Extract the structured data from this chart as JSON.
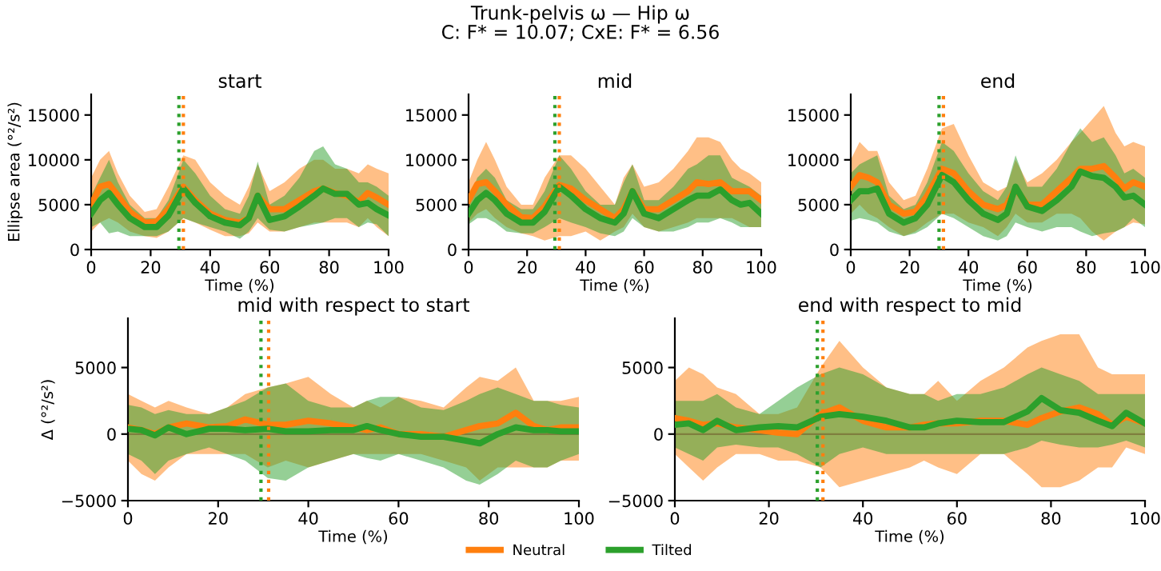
{
  "chart_data": [
    {
      "type": "line",
      "title": "start",
      "xlabel": "Time (%)",
      "ylabel": "Ellipse area (°²/s²)",
      "annotations": [
        "Trunk-pelvis ω — Hip ω",
        "C: F* = 10.07; CxE: F* = 6.56"
      ],
      "legend": "bottom",
      "x": [
        0,
        3,
        6,
        9,
        13,
        18,
        22,
        26,
        31,
        35,
        40,
        45,
        50,
        53,
        56,
        60,
        65,
        70,
        75,
        78,
        82,
        86,
        90,
        93,
        96,
        100
      ],
      "xlim": [
        0,
        100
      ],
      "xticks": [
        0,
        20,
        40,
        60,
        80,
        100
      ],
      "ylim": [
        0,
        17300
      ],
      "yticks": [
        0,
        5000,
        10000,
        15000
      ],
      "ref_lines": [
        {
          "axis": "x",
          "value": 29.5,
          "color": "#2ca02c",
          "line_style": "dotted"
        },
        {
          "axis": "x",
          "value": 31,
          "color": "#ff7f0e",
          "line_style": "dotted"
        }
      ],
      "series": [
        {
          "name": "Neutral",
          "color": "#ff7f0e",
          "values": [
            5000,
            7000,
            7300,
            6000,
            4200,
            3000,
            3100,
            4500,
            7000,
            5500,
            4000,
            3300,
            3000,
            3500,
            6000,
            4500,
            4500,
            5500,
            6500,
            6800,
            6300,
            6000,
            5300,
            6300,
            5800,
            5000
          ],
          "lower": [
            2000,
            3000,
            3500,
            3000,
            2000,
            1500,
            1300,
            2000,
            3500,
            3000,
            2200,
            1500,
            1500,
            1800,
            3000,
            2000,
            2000,
            2500,
            3000,
            3000,
            3000,
            3000,
            2500,
            3500,
            2500,
            1500
          ],
          "upper": [
            8000,
            10000,
            11000,
            8500,
            6000,
            4200,
            4500,
            7000,
            10500,
            10000,
            7500,
            6000,
            5000,
            7000,
            9500,
            6500,
            7500,
            9000,
            10000,
            10000,
            9000,
            9000,
            8500,
            9500,
            9000,
            8500
          ]
        },
        {
          "name": "Tilted",
          "color": "#2ca02c",
          "values": [
            4000,
            5500,
            6300,
            5000,
            3500,
            2500,
            2500,
            3800,
            6800,
            5200,
            3700,
            3000,
            2700,
            3500,
            6000,
            3300,
            3700,
            4800,
            6000,
            6800,
            6200,
            6200,
            5000,
            5200,
            4500,
            3800
          ],
          "lower": [
            2500,
            3000,
            1800,
            2000,
            1500,
            1500,
            1500,
            2000,
            3500,
            3000,
            2500,
            2000,
            1200,
            2000,
            3500,
            2200,
            2000,
            2500,
            2800,
            3000,
            3500,
            3500,
            2500,
            3000,
            2800,
            1500
          ],
          "upper": [
            6000,
            8000,
            10000,
            7500,
            5000,
            3500,
            3500,
            5500,
            10000,
            8500,
            6000,
            4500,
            4000,
            6000,
            9800,
            5000,
            6000,
            8000,
            11000,
            11500,
            9500,
            9000,
            7500,
            7500,
            7000,
            6000
          ]
        }
      ]
    },
    {
      "type": "line",
      "title": "mid",
      "xlabel": "Time (%)",
      "x": [
        0,
        3,
        6,
        9,
        13,
        18,
        22,
        26,
        31,
        35,
        40,
        45,
        50,
        53,
        56,
        60,
        65,
        70,
        75,
        78,
        82,
        86,
        90,
        93,
        96,
        100
      ],
      "xlim": [
        0,
        100
      ],
      "xticks": [
        0,
        20,
        40,
        60,
        80,
        100
      ],
      "ylim": [
        0,
        17300
      ],
      "yticks": [
        0,
        5000,
        10000,
        15000
      ],
      "ref_lines": [
        {
          "axis": "x",
          "value": 29.5,
          "color": "#2ca02c",
          "line_style": "dotted"
        },
        {
          "axis": "x",
          "value": 31,
          "color": "#ff7f0e",
          "line_style": "dotted"
        }
      ],
      "series": [
        {
          "color": "#ff7f0e",
          "values": [
            5500,
            7300,
            7500,
            6500,
            5000,
            3600,
            3500,
            4800,
            7200,
            6800,
            5500,
            4500,
            3500,
            4500,
            6500,
            4500,
            4500,
            5500,
            6500,
            7500,
            7300,
            7500,
            6500,
            6500,
            6500,
            5500
          ],
          "lower": [
            3000,
            4000,
            4500,
            3500,
            2500,
            1800,
            1500,
            1000,
            1500,
            1500,
            2000,
            1000,
            2000,
            2500,
            4000,
            2500,
            2000,
            2500,
            3000,
            3500,
            3500,
            3500,
            3500,
            3000,
            2500,
            2500
          ],
          "upper": [
            7500,
            10000,
            12000,
            10000,
            7000,
            5000,
            5000,
            8000,
            10500,
            10500,
            9000,
            7000,
            5000,
            8000,
            9500,
            7000,
            7500,
            9000,
            11000,
            12500,
            12500,
            12000,
            10000,
            9000,
            8500,
            7500
          ]
        },
        {
          "color": "#2ca02c",
          "values": [
            4000,
            5500,
            6300,
            5500,
            4000,
            3000,
            3000,
            4200,
            7000,
            6000,
            4500,
            3500,
            3000,
            4000,
            6500,
            4000,
            3500,
            4500,
            5500,
            6000,
            6000,
            6700,
            5500,
            5000,
            5200,
            4000
          ],
          "lower": [
            2800,
            3500,
            3500,
            3000,
            2000,
            1800,
            1800,
            2500,
            3500,
            3000,
            2500,
            1800,
            1500,
            2000,
            3500,
            2500,
            2000,
            2000,
            2500,
            3000,
            3000,
            3500,
            3000,
            2500,
            2500,
            2500
          ],
          "upper": [
            5500,
            8000,
            9000,
            8000,
            5500,
            4500,
            4500,
            6500,
            10500,
            9000,
            6500,
            5000,
            5000,
            7500,
            9500,
            5500,
            5500,
            7000,
            9000,
            9500,
            10500,
            10500,
            8000,
            7500,
            7000,
            6000
          ]
        }
      ]
    },
    {
      "type": "line",
      "title": "end",
      "xlabel": "Time (%)",
      "x": [
        0,
        3,
        6,
        9,
        13,
        18,
        22,
        26,
        31,
        35,
        40,
        45,
        50,
        53,
        56,
        60,
        65,
        70,
        75,
        78,
        82,
        86,
        90,
        93,
        96,
        100
      ],
      "xlim": [
        0,
        100
      ],
      "xticks": [
        0,
        20,
        40,
        60,
        80,
        100
      ],
      "ylim": [
        0,
        17300
      ],
      "yticks": [
        0,
        5000,
        10000,
        15000
      ],
      "ref_lines": [
        {
          "axis": "x",
          "value": 30,
          "color": "#2ca02c",
          "line_style": "dotted"
        },
        {
          "axis": "x",
          "value": 31.5,
          "color": "#ff7f0e",
          "line_style": "dotted"
        }
      ],
      "series": [
        {
          "color": "#ff7f0e",
          "values": [
            7000,
            8300,
            8000,
            7500,
            5000,
            4000,
            4200,
            6000,
            9000,
            8500,
            6500,
            5000,
            4500,
            5000,
            6800,
            5000,
            5000,
            6500,
            8000,
            9000,
            9000,
            9300,
            8000,
            6800,
            7500,
            7000
          ],
          "lower": [
            4000,
            5000,
            4000,
            3500,
            2500,
            1500,
            2000,
            3000,
            4000,
            4000,
            3000,
            2500,
            1500,
            2500,
            4000,
            3000,
            3000,
            4000,
            4000,
            3500,
            2000,
            1000,
            2000,
            2500,
            3000,
            2800
          ],
          "upper": [
            10000,
            12000,
            11000,
            11000,
            7500,
            5500,
            6000,
            9000,
            13500,
            14000,
            10500,
            7500,
            6500,
            7000,
            10000,
            7500,
            8500,
            10000,
            12000,
            13000,
            14500,
            16000,
            13000,
            11500,
            12000,
            11500
          ]
        },
        {
          "color": "#2ca02c",
          "values": [
            5500,
            6500,
            6500,
            6800,
            4000,
            3000,
            3500,
            5000,
            8300,
            7500,
            5500,
            4000,
            3300,
            4000,
            7000,
            4800,
            4300,
            5500,
            7000,
            8700,
            8200,
            8000,
            7000,
            5800,
            6000,
            5000
          ],
          "lower": [
            3200,
            3500,
            3300,
            3000,
            2000,
            1500,
            1800,
            2500,
            4000,
            3500,
            2500,
            1500,
            1000,
            1500,
            3000,
            2500,
            2000,
            2500,
            2500,
            2000,
            1500,
            1800,
            2000,
            2500,
            3500,
            2500
          ],
          "upper": [
            8500,
            9500,
            10000,
            10500,
            6000,
            4500,
            5000,
            7500,
            12000,
            11000,
            8500,
            6500,
            5500,
            7000,
            10500,
            7000,
            7000,
            9000,
            12000,
            13500,
            12000,
            12500,
            10500,
            8500,
            9000,
            8000
          ]
        }
      ]
    },
    {
      "type": "line",
      "title": "mid with respect to start",
      "xlabel": "Time (%)",
      "ylabel": "Δ (°²/s²)",
      "x": [
        0,
        3,
        6,
        9,
        13,
        18,
        22,
        26,
        31,
        35,
        40,
        45,
        50,
        53,
        56,
        60,
        65,
        70,
        75,
        78,
        82,
        86,
        90,
        93,
        96,
        100
      ],
      "xlim": [
        0,
        100
      ],
      "xticks": [
        0,
        20,
        40,
        60,
        80,
        100
      ],
      "ylim": [
        -5000,
        8700
      ],
      "yticks": [
        -5000,
        0,
        5000
      ],
      "ref_lines": [
        {
          "axis": "y",
          "value": 0,
          "color": "#7f7f3f",
          "line_style": "solid"
        },
        {
          "axis": "x",
          "value": 29.5,
          "color": "#2ca02c",
          "line_style": "dotted"
        },
        {
          "axis": "x",
          "value": 31.2,
          "color": "#ff7f0e",
          "line_style": "dotted"
        }
      ],
      "series": [
        {
          "color": "#ff7f0e",
          "values": [
            500,
            300,
            0,
            500,
            800,
            500,
            600,
            1100,
            700,
            700,
            1000,
            800,
            500,
            300,
            500,
            0,
            0,
            -200,
            300,
            600,
            800,
            1600,
            600,
            300,
            500,
            500
          ],
          "lower": [
            -2000,
            -3000,
            -3500,
            -2500,
            -1500,
            -1500,
            -1500,
            -1500,
            -2500,
            -2000,
            -2500,
            -2000,
            -1500,
            -1500,
            -1500,
            -1500,
            -1500,
            -2000,
            -2500,
            -3500,
            -2500,
            -2500,
            -2500,
            -2500,
            -2000,
            -2000
          ],
          "upper": [
            3000,
            2500,
            2000,
            2500,
            2000,
            1500,
            2000,
            3000,
            3500,
            3800,
            4300,
            3000,
            2000,
            2500,
            2000,
            2800,
            2500,
            2000,
            3500,
            4300,
            4000,
            5000,
            2500,
            2500,
            2500,
            2800
          ]
        },
        {
          "color": "#2ca02c",
          "values": [
            400,
            300,
            -100,
            500,
            0,
            400,
            400,
            300,
            400,
            200,
            200,
            300,
            300,
            600,
            300,
            0,
            -200,
            -200,
            -500,
            -700,
            0,
            500,
            300,
            300,
            200,
            200
          ],
          "lower": [
            -1500,
            -2000,
            -3000,
            -2000,
            -1500,
            -1000,
            -1500,
            -2000,
            -3300,
            -3500,
            -2500,
            -2000,
            -1500,
            -1800,
            -2000,
            -1500,
            -2000,
            -2500,
            -3500,
            -3800,
            -3000,
            -2000,
            -2500,
            -2500,
            -2000,
            -1500
          ],
          "upper": [
            2200,
            2000,
            1500,
            1800,
            1500,
            1500,
            2000,
            2500,
            3500,
            3800,
            2500,
            2000,
            2000,
            2500,
            2800,
            2800,
            2000,
            1800,
            2500,
            3000,
            3500,
            3000,
            2500,
            2500,
            2200,
            2000
          ]
        }
      ]
    },
    {
      "type": "line",
      "title": "end with respect to mid",
      "xlabel": "Time (%)",
      "x": [
        0,
        3,
        6,
        9,
        13,
        18,
        22,
        26,
        31,
        35,
        40,
        45,
        50,
        53,
        56,
        60,
        65,
        70,
        75,
        78,
        82,
        86,
        90,
        93,
        96,
        100
      ],
      "xlim": [
        0,
        100
      ],
      "xticks": [
        0,
        20,
        40,
        60,
        80,
        100
      ],
      "ylim": [
        -5000,
        8700
      ],
      "yticks": [
        -5000,
        0,
        5000
      ],
      "ref_lines": [
        {
          "axis": "y",
          "value": 0,
          "color": "#7f7f3f",
          "line_style": "solid"
        },
        {
          "axis": "x",
          "value": 30.3,
          "color": "#2ca02c",
          "line_style": "dotted"
        },
        {
          "axis": "x",
          "value": 31.5,
          "color": "#ff7f0e",
          "line_style": "dotted"
        }
      ],
      "series": [
        {
          "color": "#ff7f0e",
          "values": [
            1200,
            1000,
            700,
            800,
            500,
            300,
            100,
            0,
            1500,
            2000,
            1000,
            500,
            500,
            700,
            800,
            800,
            1000,
            1000,
            700,
            1200,
            1700,
            2000,
            1500,
            700,
            1300,
            800
          ],
          "lower": [
            -1500,
            -2500,
            -3500,
            -2500,
            -1500,
            -1500,
            -2000,
            -2000,
            -2500,
            -4000,
            -3500,
            -3000,
            -2500,
            -2000,
            -2500,
            -3000,
            -1500,
            -1500,
            -3000,
            -4000,
            -4000,
            -3500,
            -2500,
            -2500,
            -1000,
            -1500
          ],
          "upper": [
            4000,
            5000,
            4500,
            3500,
            3000,
            1500,
            1500,
            2000,
            5000,
            7000,
            5000,
            3500,
            3000,
            3000,
            4000,
            2500,
            4000,
            5000,
            6500,
            7000,
            7500,
            7500,
            5000,
            4500,
            4500,
            4500
          ]
        },
        {
          "color": "#2ca02c",
          "values": [
            700,
            800,
            300,
            1000,
            300,
            500,
            600,
            500,
            1300,
            1500,
            1300,
            1000,
            500,
            500,
            800,
            1000,
            900,
            900,
            1700,
            2700,
            1800,
            1600,
            1000,
            600,
            1600,
            800
          ],
          "lower": [
            -1000,
            -1500,
            -2000,
            -1000,
            -800,
            -1000,
            -1000,
            -1500,
            -2500,
            -1500,
            -1000,
            -1500,
            -1500,
            -1500,
            -1500,
            -1500,
            -1500,
            -1500,
            -1000,
            -500,
            -800,
            -1000,
            -1000,
            -800,
            -500,
            -1000
          ],
          "upper": [
            2500,
            2500,
            2500,
            3000,
            2000,
            1500,
            2500,
            3500,
            4500,
            5000,
            4500,
            3500,
            3000,
            3000,
            2500,
            3000,
            3000,
            3500,
            4500,
            5000,
            4500,
            4000,
            3000,
            3000,
            3000,
            3000
          ]
        }
      ]
    }
  ]
}
